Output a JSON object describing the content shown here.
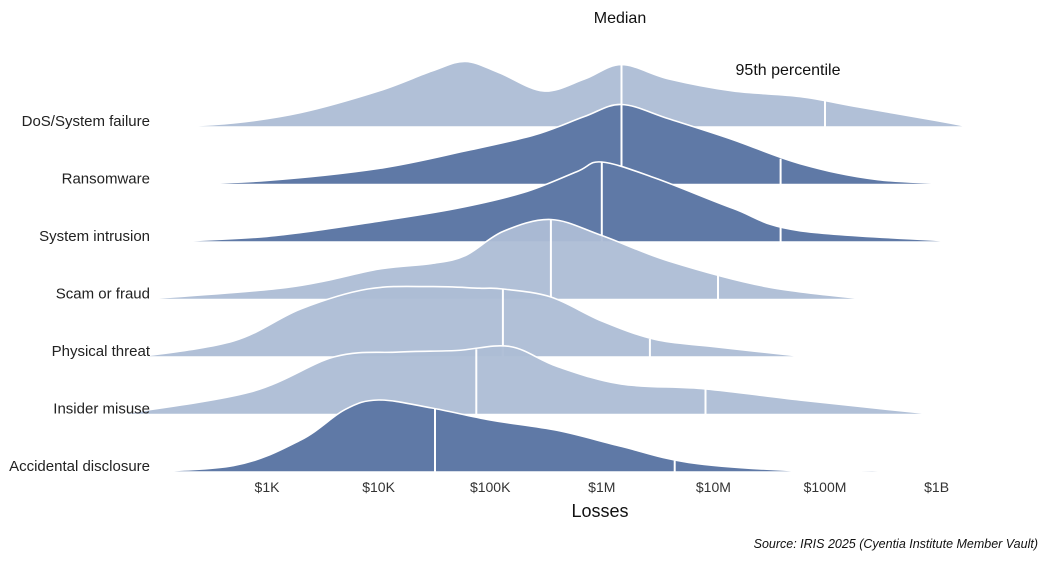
{
  "chart_data": {
    "type": "ridgeline",
    "title": "",
    "xlabel": "Losses",
    "ylabel": "",
    "x_scale": "log10",
    "xlim": [
      100,
      3000000000
    ],
    "x_ticks": [
      {
        "value": 1000,
        "label": "$1K"
      },
      {
        "value": 10000,
        "label": "$10K"
      },
      {
        "value": 100000,
        "label": "$100K"
      },
      {
        "value": 1000000,
        "label": "$1M"
      },
      {
        "value": 10000000,
        "label": "$10M"
      },
      {
        "value": 100000000,
        "label": "$100M"
      },
      {
        "value": 1000000000,
        "label": "$1B"
      }
    ],
    "annotations": {
      "median": "Median",
      "p95": "95th percentile"
    },
    "colors": {
      "dark": "#5f79a6",
      "light": "#adbdd5",
      "marker": "#ffffff"
    },
    "series": [
      {
        "name": "DoS/System failure",
        "shade": "light",
        "median": 1500000,
        "p95": 100000000,
        "density": [
          [
            130,
            0.0
          ],
          [
            500,
            0.05
          ],
          [
            2000,
            0.18
          ],
          [
            10000,
            0.45
          ],
          [
            30000,
            0.7
          ],
          [
            60000,
            0.82
          ],
          [
            120000,
            0.68
          ],
          [
            300000,
            0.45
          ],
          [
            700000,
            0.6
          ],
          [
            1500000,
            0.78
          ],
          [
            4000000,
            0.6
          ],
          [
            15000000,
            0.45
          ],
          [
            60000000,
            0.38
          ],
          [
            200000000,
            0.25
          ],
          [
            1000000000,
            0.08
          ],
          [
            2000000000,
            0.0
          ]
        ]
      },
      {
        "name": "Ransomware",
        "shade": "dark",
        "median": 1500000,
        "p95": 40000000,
        "density": [
          [
            130,
            0.0
          ],
          [
            1000,
            0.05
          ],
          [
            10000,
            0.2
          ],
          [
            60000,
            0.42
          ],
          [
            250000,
            0.62
          ],
          [
            700000,
            0.85
          ],
          [
            1500000,
            1.0
          ],
          [
            4000000,
            0.82
          ],
          [
            15000000,
            0.56
          ],
          [
            60000000,
            0.26
          ],
          [
            300000000,
            0.06
          ],
          [
            2500000000,
            0.0
          ]
        ]
      },
      {
        "name": "System intrusion",
        "shade": "dark",
        "median": 1000000,
        "p95": 40000000,
        "density": [
          [
            90,
            0.0
          ],
          [
            1000,
            0.07
          ],
          [
            10000,
            0.26
          ],
          [
            50000,
            0.42
          ],
          [
            200000,
            0.62
          ],
          [
            600000,
            0.88
          ],
          [
            1000000,
            1.0
          ],
          [
            3000000,
            0.8
          ],
          [
            15000000,
            0.42
          ],
          [
            60000000,
            0.14
          ],
          [
            2000000000,
            0.0
          ]
        ]
      },
      {
        "name": "Scam or fraud",
        "shade": "light",
        "median": 350000,
        "p95": 11000000,
        "density": [
          [
            70,
            0.0
          ],
          [
            1500,
            0.15
          ],
          [
            10000,
            0.38
          ],
          [
            30000,
            0.45
          ],
          [
            60000,
            0.55
          ],
          [
            130000,
            0.85
          ],
          [
            350000,
            1.0
          ],
          [
            1000000,
            0.8
          ],
          [
            4000000,
            0.48
          ],
          [
            30000000,
            0.16
          ],
          [
            250000000,
            0.0
          ]
        ]
      },
      {
        "name": "Physical threat",
        "shade": "light",
        "median": 130000,
        "p95": 2700000,
        "density": [
          [
            70,
            0.0
          ],
          [
            500,
            0.2
          ],
          [
            2000,
            0.6
          ],
          [
            8000,
            0.85
          ],
          [
            30000,
            0.88
          ],
          [
            80000,
            0.86
          ],
          [
            130000,
            0.85
          ],
          [
            350000,
            0.75
          ],
          [
            1000000,
            0.45
          ],
          [
            3000000,
            0.22
          ],
          [
            10000000,
            0.13
          ],
          [
            70000000,
            0.0
          ]
        ]
      },
      {
        "name": "Insider misuse",
        "shade": "light",
        "median": 75000,
        "p95": 8500000,
        "density": [
          [
            45,
            0.0
          ],
          [
            700,
            0.28
          ],
          [
            4000,
            0.72
          ],
          [
            15000,
            0.78
          ],
          [
            50000,
            0.8
          ],
          [
            150000,
            0.85
          ],
          [
            400000,
            0.6
          ],
          [
            1500000,
            0.38
          ],
          [
            8500000,
            0.32
          ],
          [
            60000000,
            0.18
          ],
          [
            1000000000,
            0.0
          ]
        ]
      },
      {
        "name": "Accidental disclosure",
        "shade": "dark",
        "median": 32000,
        "p95": 4500000,
        "density": [
          [
            55,
            0.0
          ],
          [
            500,
            0.08
          ],
          [
            2000,
            0.4
          ],
          [
            5000,
            0.78
          ],
          [
            10000,
            0.9
          ],
          [
            30000,
            0.8
          ],
          [
            100000,
            0.65
          ],
          [
            400000,
            0.52
          ],
          [
            1500000,
            0.32
          ],
          [
            6000000,
            0.12
          ],
          [
            50000000,
            0.02
          ],
          [
            300000000,
            0.02
          ],
          [
            1500000000,
            0.0
          ]
        ]
      }
    ]
  },
  "source_note": "Source: IRIS 2025 (Cyentia Institute Member Vault)"
}
